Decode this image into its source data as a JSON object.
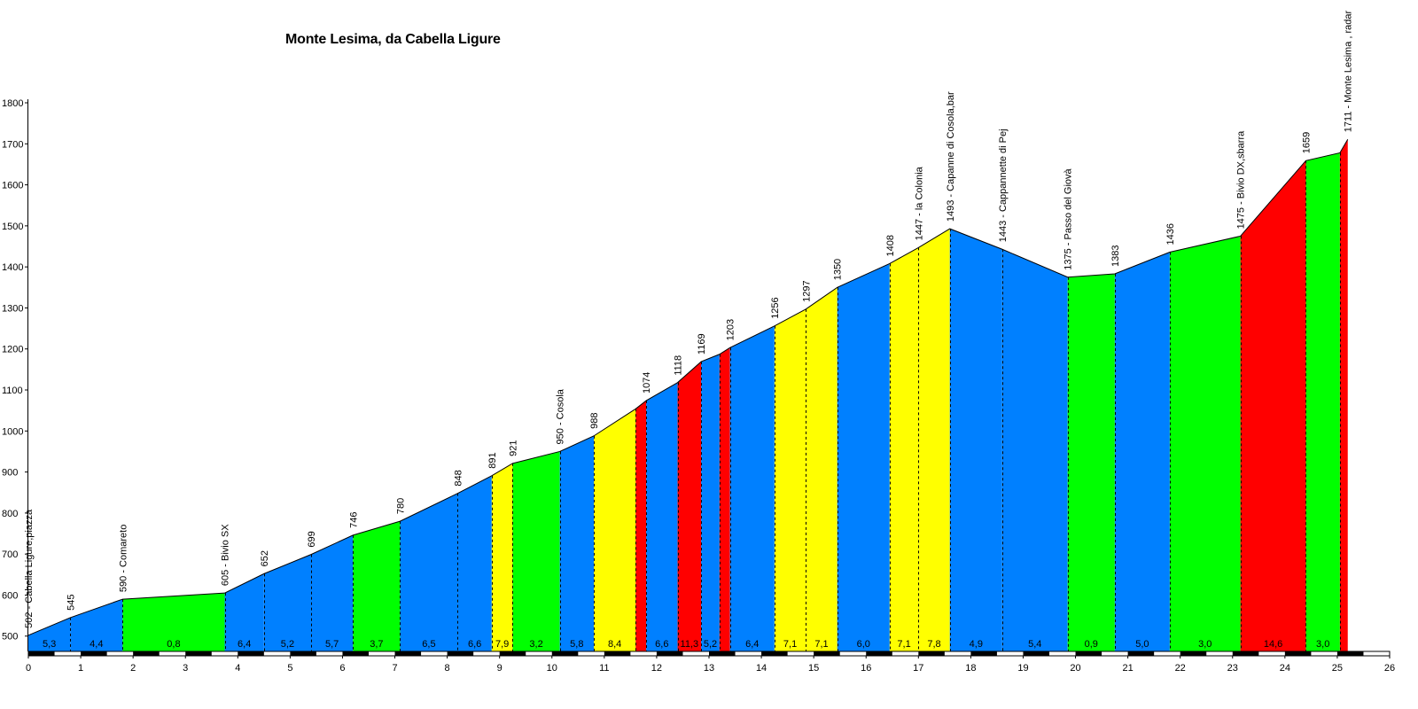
{
  "chart_data": {
    "type": "area",
    "title": "Monte Lesima, da Cabella Ligure",
    "xlabel": "",
    "ylabel": "",
    "xlim": [
      0,
      26
    ],
    "ylim": [
      480,
      1800
    ],
    "x_ticks": [
      0,
      1,
      2,
      3,
      4,
      5,
      6,
      7,
      8,
      9,
      10,
      11,
      12,
      13,
      14,
      15,
      16,
      17,
      18,
      19,
      20,
      21,
      22,
      23,
      24,
      25,
      26
    ],
    "y_ticks": [
      500,
      600,
      700,
      800,
      900,
      1000,
      1100,
      1200,
      1300,
      1400,
      1500,
      1600,
      1700,
      1800
    ],
    "grid": false,
    "legend": "none",
    "points": [
      {
        "x": 0,
        "y": 502,
        "label": "502 - Cabella Ligure,piazza"
      },
      {
        "x": 0.8,
        "y": 545,
        "label": "545"
      },
      {
        "x": 1.8,
        "y": 590,
        "label": "590 - Comareto"
      },
      {
        "x": 3.75,
        "y": 605,
        "label": "605 - Bivio SX"
      },
      {
        "x": 4.5,
        "y": 652,
        "label": "652"
      },
      {
        "x": 5.4,
        "y": 699,
        "label": "699"
      },
      {
        "x": 6.2,
        "y": 746,
        "label": "746"
      },
      {
        "x": 7.1,
        "y": 780,
        "label": "780"
      },
      {
        "x": 8.2,
        "y": 848,
        "label": "848"
      },
      {
        "x": 8.85,
        "y": 891,
        "label": "891"
      },
      {
        "x": 9.25,
        "y": 921,
        "label": "921"
      },
      {
        "x": 10.15,
        "y": 950,
        "label": "950 - Cosola"
      },
      {
        "x": 10.8,
        "y": 988,
        "label": "988"
      },
      {
        "x": 11.6,
        "y": 1054,
        "label": ""
      },
      {
        "x": 11.8,
        "y": 1074,
        "label": "1074"
      },
      {
        "x": 12.4,
        "y": 1118,
        "label": "1118"
      },
      {
        "x": 12.85,
        "y": 1169,
        "label": "1169"
      },
      {
        "x": 13.2,
        "y": 1187,
        "label": ""
      },
      {
        "x": 13.4,
        "y": 1203,
        "label": "1203"
      },
      {
        "x": 14.25,
        "y": 1256,
        "label": "1256"
      },
      {
        "x": 14.85,
        "y": 1297,
        "label": "1297"
      },
      {
        "x": 15.45,
        "y": 1350,
        "label": "1350"
      },
      {
        "x": 16.45,
        "y": 1408,
        "label": "1408"
      },
      {
        "x": 17.0,
        "y": 1447,
        "label": "1447 - la Colonia"
      },
      {
        "x": 17.6,
        "y": 1493,
        "label": "1493 - Capanne di Cosola,bar"
      },
      {
        "x": 18.6,
        "y": 1443,
        "label": "1443 - Cappannette di Pej"
      },
      {
        "x": 19.85,
        "y": 1375,
        "label": "1375 - Passo del Giovà"
      },
      {
        "x": 20.75,
        "y": 1383,
        "label": "1383"
      },
      {
        "x": 21.8,
        "y": 1436,
        "label": "1436"
      },
      {
        "x": 23.15,
        "y": 1475,
        "label": "1475 - Bivio DX,sbarra"
      },
      {
        "x": 24.4,
        "y": 1659,
        "label": "1659"
      },
      {
        "x": 25.05,
        "y": 1678,
        "label": ""
      },
      {
        "x": 25.2,
        "y": 1711,
        "label": "1711 - Monte Lesima , radar"
      }
    ],
    "segments": [
      {
        "from": 0,
        "to": 1,
        "gradient": "5,3",
        "color": "#0080ff"
      },
      {
        "from": 1,
        "to": 2,
        "gradient": "4,4",
        "color": "#0080ff"
      },
      {
        "from": 2,
        "to": 3,
        "gradient": "0,8",
        "color": "#00ff00"
      },
      {
        "from": 3,
        "to": 4,
        "gradient": "6,4",
        "color": "#0080ff"
      },
      {
        "from": 4,
        "to": 5,
        "gradient": "5,2",
        "color": "#0080ff"
      },
      {
        "from": 5,
        "to": 6,
        "gradient": "5,7",
        "color": "#0080ff"
      },
      {
        "from": 6,
        "to": 7,
        "gradient": "3,7",
        "color": "#00ff00"
      },
      {
        "from": 7,
        "to": 8,
        "gradient": "6,5",
        "color": "#0080ff"
      },
      {
        "from": 8,
        "to": 9,
        "gradient": "6,6",
        "color": "#0080ff"
      },
      {
        "from": 9,
        "to": 10,
        "gradient": "7,9",
        "color": "#ffff00"
      },
      {
        "from": 10,
        "to": 11,
        "gradient": "3,2",
        "color": "#00ff00"
      },
      {
        "from": 11,
        "to": 12,
        "gradient": "5,8",
        "color": "#0080ff"
      },
      {
        "from": 12,
        "to": 13,
        "gradient": "8,4",
        "color": "#ffff00"
      },
      {
        "from": 13,
        "to": 14,
        "gradient": "",
        "color": "#ff0000"
      },
      {
        "from": 14,
        "to": 15,
        "gradient": "6,6",
        "color": "#0080ff"
      },
      {
        "from": 15,
        "to": 16,
        "gradient": "11,3",
        "color": "#ff0000"
      },
      {
        "from": 16,
        "to": 17,
        "gradient": "5,2",
        "color": "#0080ff"
      },
      {
        "from": 17,
        "to": 18,
        "gradient": "",
        "color": "#ff0000"
      },
      {
        "from": 18,
        "to": 19,
        "gradient": "6,4",
        "color": "#0080ff"
      },
      {
        "from": 19,
        "to": 20,
        "gradient": "7,1",
        "color": "#ffff00"
      },
      {
        "from": 20,
        "to": 21,
        "gradient": "7,1",
        "color": "#ffff00"
      },
      {
        "from": 21,
        "to": 22,
        "gradient": "6,0",
        "color": "#0080ff"
      },
      {
        "from": 22,
        "to": 23,
        "gradient": "7,1",
        "color": "#ffff00"
      },
      {
        "from": 23,
        "to": 24,
        "gradient": "7,8",
        "color": "#ffff00"
      },
      {
        "from": 24,
        "to": 25,
        "gradient": "4,9",
        "color": "#0080ff"
      },
      {
        "from": 25,
        "to": 26,
        "gradient": "5,4",
        "color": "#0080ff"
      },
      {
        "from": 26,
        "to": 27,
        "gradient": "0,9",
        "color": "#00ff00"
      },
      {
        "from": 27,
        "to": 28,
        "gradient": "5,0",
        "color": "#0080ff"
      },
      {
        "from": 28,
        "to": 29,
        "gradient": "3,0",
        "color": "#00ff00"
      },
      {
        "from": 29,
        "to": 30,
        "gradient": "14,6",
        "color": "#ff0000"
      },
      {
        "from": 30,
        "to": 31,
        "gradient": "3,0",
        "color": "#00ff00"
      },
      {
        "from": 31,
        "to": 32,
        "gradient": "",
        "color": "#ff0000"
      }
    ]
  }
}
